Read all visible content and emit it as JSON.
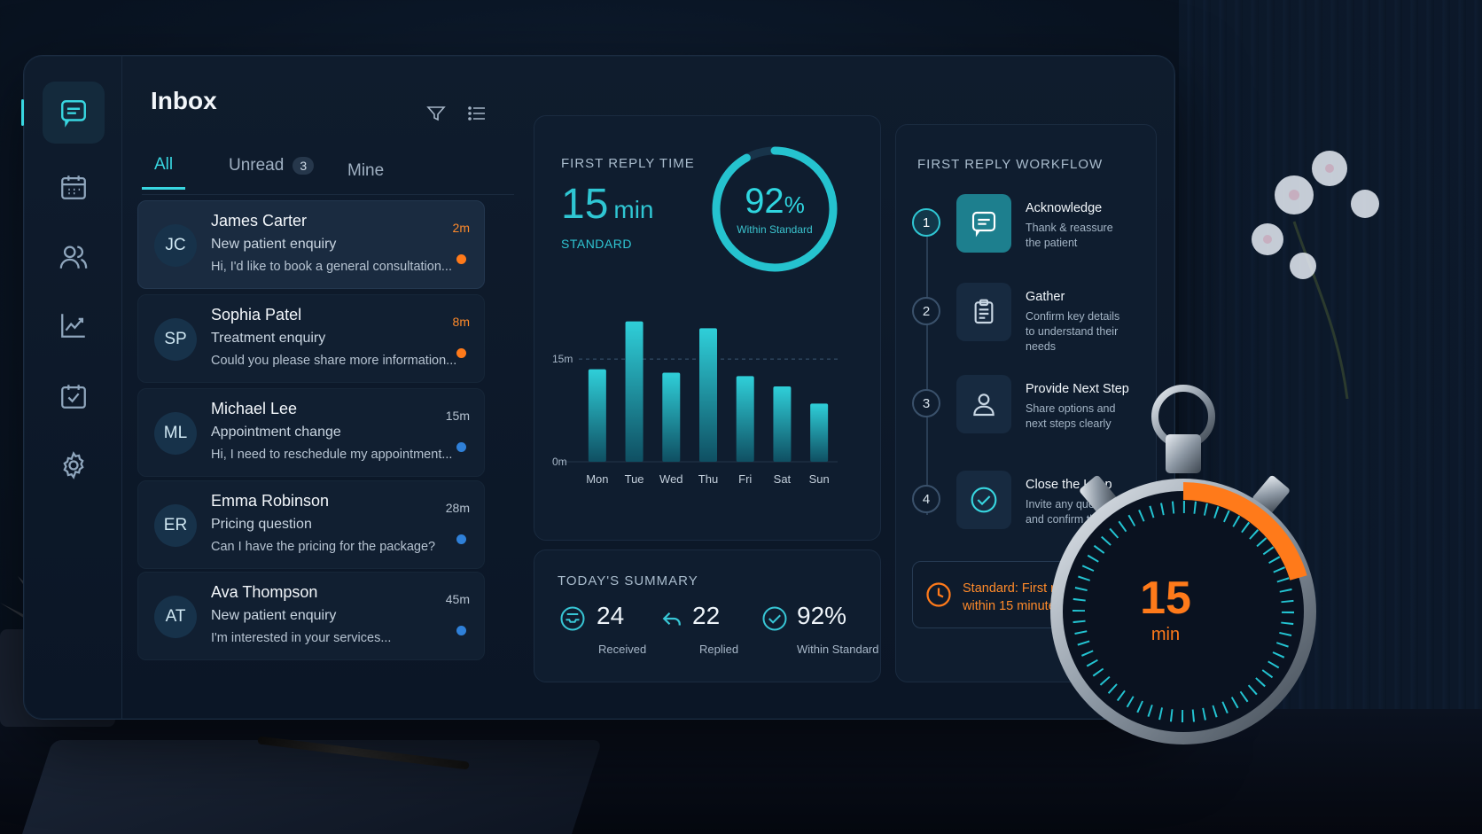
{
  "inbox": {
    "title": "Inbox",
    "tabs": [
      {
        "label": "All"
      },
      {
        "label": "Unread",
        "badge": "3"
      },
      {
        "label": "Mine"
      }
    ],
    "messages": [
      {
        "initials": "JC",
        "name": "James Carter",
        "subject": "New patient enquiry",
        "preview": "Hi, I'd like to book a general consultation...",
        "time": "2m",
        "status": "orange"
      },
      {
        "initials": "SP",
        "name": "Sophia Patel",
        "subject": "Treatment enquiry",
        "preview": "Could you please share more information...",
        "time": "8m",
        "status": "orange"
      },
      {
        "initials": "ML",
        "name": "Michael Lee",
        "subject": "Appointment change",
        "preview": "Hi, I need to reschedule my appointment...",
        "time": "15m",
        "status": "blue"
      },
      {
        "initials": "ER",
        "name": "Emma Robinson",
        "subject": "Pricing question",
        "preview": "Can I have the pricing for the package?",
        "time": "28m",
        "status": "blue"
      },
      {
        "initials": "AT",
        "name": "Ava Thompson",
        "subject": "New patient enquiry",
        "preview": "I'm interested in your services...",
        "time": "45m",
        "status": "blue"
      }
    ]
  },
  "first_reply": {
    "title": "FIRST REPLY TIME",
    "value": "15",
    "unit": "min",
    "standard_label": "STANDARD",
    "ring_percent": 92,
    "ring_value": "92",
    "ring_suffix": "%",
    "ring_label": "Within Standard"
  },
  "chart_data": {
    "type": "bar",
    "title": "",
    "categories": [
      "Mon",
      "Tue",
      "Wed",
      "Thu",
      "Fri",
      "Sat",
      "Sun"
    ],
    "values": [
      13.5,
      20.5,
      13,
      19.5,
      12.5,
      11,
      8.5
    ],
    "yticks": [
      "0m",
      "15m"
    ],
    "threshold": 15,
    "ylim": [
      0,
      22
    ],
    "grid": false
  },
  "summary": {
    "title": "TODAY'S SUMMARY",
    "items": [
      {
        "value": "24",
        "label": "Received",
        "icon": "inbox-tray-icon"
      },
      {
        "value": "22",
        "label": "Replied",
        "icon": "reply-arrow-icon"
      },
      {
        "value": "92%",
        "label": "Within Standard",
        "icon": "check-circle-icon"
      }
    ]
  },
  "workflow": {
    "title": "FIRST REPLY WORKFLOW",
    "steps": [
      {
        "num": "1",
        "title": "Acknowledge",
        "desc": "Thank & reassure the patient",
        "icon": "chat-icon"
      },
      {
        "num": "2",
        "title": "Gather",
        "desc": "Confirm key details to understand their needs",
        "icon": "clipboard-icon"
      },
      {
        "num": "3",
        "title": "Provide Next Step",
        "desc": "Share options and next steps clearly",
        "icon": "user-icon"
      },
      {
        "num": "4",
        "title": "Close the Loop",
        "desc": "Invite any questions and confirm the plan",
        "icon": "check-circle-icon"
      }
    ],
    "standard_text": "Standard: First reply within 15 minutes"
  },
  "stopwatch": {
    "value": "15",
    "unit": "min"
  },
  "colors": {
    "accent": "#38d6e0",
    "urgent": "#ff7a1a",
    "unread_dot": "#2f80d8",
    "panel": "#0f1d2f"
  }
}
